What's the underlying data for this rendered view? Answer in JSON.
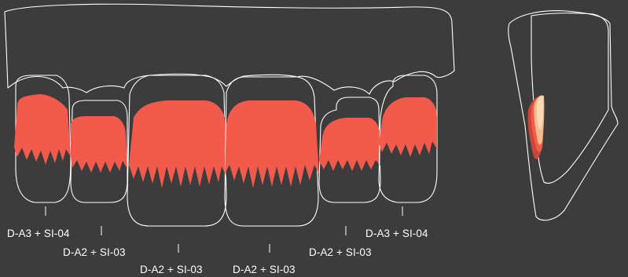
{
  "labels": [
    {
      "id": "tooth-1",
      "text": "D-A3 + SI-04"
    },
    {
      "id": "tooth-2",
      "text": "D-A2 + SI-03"
    },
    {
      "id": "tooth-3",
      "text": "D-A2 + SI-03"
    },
    {
      "id": "tooth-4",
      "text": "D-A2 + SI-03"
    },
    {
      "id": "tooth-5",
      "text": "D-A2 + SI-03"
    },
    {
      "id": "tooth-6",
      "text": "D-A3 + SI-04"
    }
  ],
  "colors": {
    "background": "#3c3c3c",
    "outline": "#ffffff",
    "dentin": "#f25a4c",
    "dentin_dark": "#c9463b",
    "enamel_light": "#f6b98a",
    "enamel_pale": "#fbd8b4"
  }
}
